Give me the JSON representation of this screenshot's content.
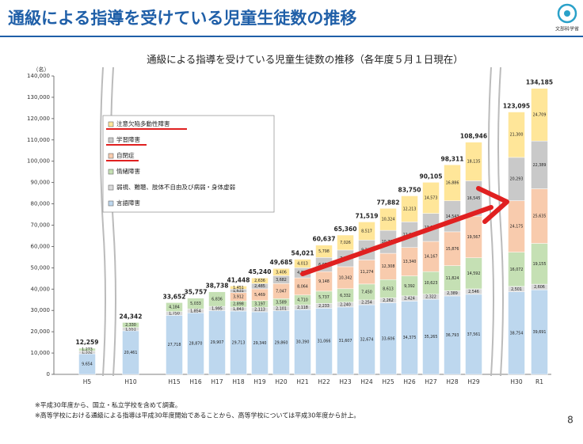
{
  "header": {
    "title": "通級による指導を受けている児童生徒数の推移",
    "logo_text": "文部科学省"
  },
  "chart_data": {
    "type": "stacked_bar",
    "title": "通級による指導を受けている児童生徒数の推移（各年度５月１日現在）",
    "y_unit": "（名）",
    "categories": [
      "H5",
      "H10",
      "H15",
      "H16",
      "H17",
      "H18",
      "H19",
      "H20",
      "H21",
      "H22",
      "H23",
      "H24",
      "H25",
      "H26",
      "H27",
      "H28",
      "H29",
      "H30",
      "R1"
    ],
    "series": [
      {
        "name": "言語障害",
        "color": "#bdd7ee",
        "values": [
          9654,
          20461,
          27718,
          28870,
          29907,
          29713,
          29340,
          29860,
          30390,
          31066,
          31607,
          32674,
          33606,
          34375,
          35265,
          36793,
          37561,
          38754,
          39691
        ],
        "value_labels": [
          "9,654",
          "20,461",
          "27,718",
          "28,870",
          "29,907",
          "29,713",
          "29,340",
          "29,860",
          "30,390",
          "31,066",
          "31,607",
          "32,674",
          "33,606",
          "34,375",
          "35,265",
          "36,793",
          "37,561",
          "38,754",
          "39,691"
        ]
      },
      {
        "name": "弱視、難聴、肢体不自由及び病弱・身体虚弱",
        "color": "#d9d9d9",
        "values": [
          1332,
          1551,
          1750,
          1854,
          1995,
          1843,
          2113,
          2101,
          2118,
          2233,
          2240,
          2254,
          2262,
          2424,
          2322,
          2389,
          2546,
          2501,
          2606
        ],
        "value_labels": [
          "1,332",
          "1,551",
          "1,750",
          "1,854",
          "1,995",
          "1,843",
          "2,113",
          "2,101",
          "2,118",
          "2,233",
          "2,240",
          "2,254",
          "2,262",
          "2,424",
          "2,322",
          "2,389",
          "2,546",
          "2,501",
          "2,606"
        ]
      },
      {
        "name": "情緒障害",
        "color": "#c5e0b4",
        "values": [
          1273,
          2330,
          4184,
          5033,
          6836,
          2898,
          3197,
          3589,
          4710,
          5737,
          6332,
          7450,
          8613,
          9392,
          10623,
          11824,
          14592,
          16072,
          19155
        ],
        "value_labels": [
          "1,273",
          "2,330",
          "4,184",
          "5,033",
          "6,836",
          "2,898",
          "3,197",
          "3,589",
          "4,710",
          "5,737",
          "6,332",
          "7,450",
          "8,613",
          "9,392",
          "10,623",
          "11,824",
          "14,592",
          "16,072",
          "19,155"
        ]
      },
      {
        "name": "自閉症",
        "color": "#f8cbad",
        "values": [
          null,
          null,
          null,
          null,
          null,
          3912,
          5469,
          7047,
          8064,
          9148,
          10342,
          11274,
          12308,
          13340,
          14167,
          15876,
          19567,
          24175,
          25635
        ],
        "value_labels": [
          null,
          null,
          null,
          null,
          null,
          "3,912",
          "5,469",
          "7,047",
          "8,064",
          "9,148",
          "10,342",
          "11,274",
          "12,308",
          "13,340",
          "14,167",
          "15,876",
          "19,567",
          "24,175",
          "25,635"
        ]
      },
      {
        "name": "学習障害",
        "color": "#c9c9c9",
        "values": [
          null,
          null,
          null,
          null,
          null,
          1631,
          2485,
          3682,
          4726,
          6655,
          7813,
          9350,
          10769,
          12006,
          13155,
          14543,
          16545,
          20293,
          22389
        ],
        "value_labels": [
          null,
          null,
          null,
          null,
          null,
          "1,631",
          "2,485",
          "3,682",
          "4,726",
          "6,655",
          "7,813",
          "9,350",
          "10,769",
          "12,006",
          "13,155",
          "14,543",
          "16,545",
          "20,293",
          "22,389"
        ]
      },
      {
        "name": "注意欠陥多動性障害",
        "color": "#ffe699",
        "values": [
          null,
          null,
          null,
          null,
          null,
          1451,
          2636,
          3406,
          4013,
          5798,
          7026,
          8517,
          10324,
          12213,
          14573,
          16886,
          18135,
          21300,
          24709
        ],
        "value_labels": [
          null,
          null,
          null,
          null,
          null,
          "1,451",
          "2,636",
          "3,406",
          "4,013",
          "5,798",
          "7,026",
          "8,517",
          "10,324",
          "12,213",
          "14,573",
          "16,886",
          "18,135",
          "21,300",
          "24,709"
        ]
      }
    ],
    "totals": {
      "values": [
        12259,
        24342,
        33652,
        35757,
        38738,
        41448,
        45240,
        49685,
        54021,
        60637,
        65360,
        71519,
        77882,
        83750,
        90105,
        98311,
        108946,
        123095,
        134185
      ],
      "value_labels": [
        "12,259",
        "24,342",
        "33,652",
        "35,757",
        "38,738",
        "41,448",
        "45,240",
        "49,685",
        "54,021",
        "60,637",
        "65,360",
        "71,519",
        "77,882",
        "83,750",
        "90,105",
        "98,311",
        "108,946",
        "123,095",
        "134,185"
      ]
    },
    "ylim": [
      0,
      140000
    ],
    "yticks": [
      0,
      {
        "value": 10000,
        "label": "10,000"
      },
      {
        "value": 20000,
        "label": "20,000"
      },
      {
        "value": 30000,
        "label": "30,000"
      },
      {
        "value": 40000,
        "label": "40,000"
      },
      {
        "value": 50000,
        "label": "50,000"
      },
      {
        "value": 60000,
        "label": "60,000"
      },
      {
        "value": 70000,
        "label": "70,000"
      },
      {
        "value": 80000,
        "label": "80,000"
      },
      {
        "value": 90000,
        "label": "90,000"
      },
      {
        "value": 100000,
        "label": "100,000"
      },
      {
        "value": 110000,
        "label": "110,000"
      },
      {
        "value": 120000,
        "label": "120,000"
      },
      {
        "value": 130000,
        "label": "130,000"
      },
      {
        "value": 140000,
        "label": "140,000"
      }
    ],
    "grid": false
  },
  "footnotes": [
    "※平成30年度から、国立・私立学校を含めて調査。",
    "※高等学校における通級による指導は平成30年度開始であることから、高等学校については平成30年度から計上。"
  ],
  "page_number": "8"
}
